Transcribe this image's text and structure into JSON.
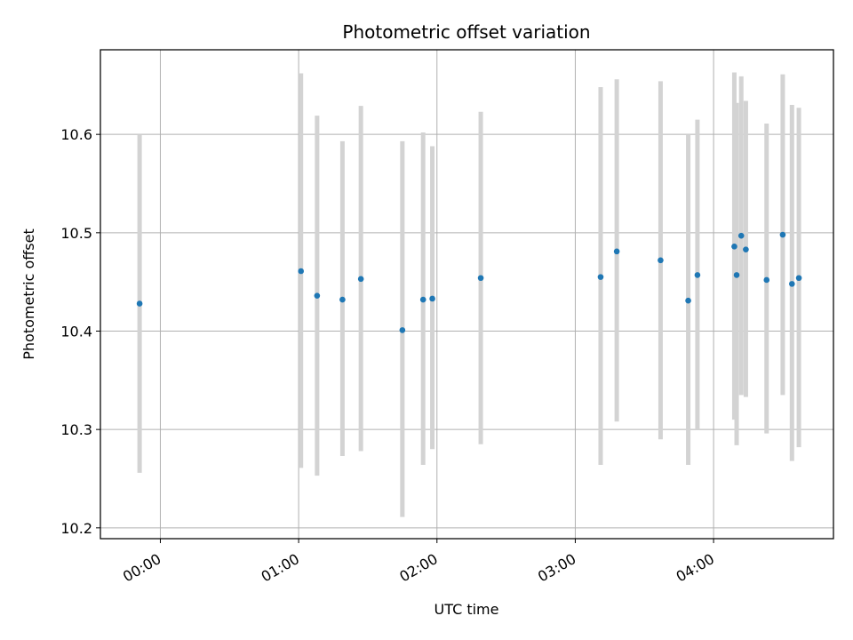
{
  "chart_data": {
    "type": "scatter",
    "title": "Photometric offset variation",
    "xlabel": "UTC time",
    "ylabel": "Photometric offset",
    "xlim": [
      "23:34",
      "04:52"
    ],
    "ylim": [
      10.189,
      10.686
    ],
    "x_ticks": [
      "00:00",
      "01:00",
      "02:00",
      "03:00",
      "04:00"
    ],
    "y_ticks": [
      "10.2",
      "10.3",
      "10.4",
      "10.5",
      "10.6"
    ],
    "grid": true,
    "colors": {
      "points": "#1f77b4",
      "error_bars": "#d3d3d3",
      "grid": "#b0b0b0"
    },
    "series": [
      {
        "x": [
          "23:51",
          "01:01",
          "01:08",
          "01:19",
          "01:27",
          "01:45",
          "01:54",
          "01:58",
          "02:19",
          "03:11",
          "03:18",
          "03:37",
          "03:49",
          "03:53",
          "04:09",
          "04:10",
          "04:12",
          "04:14",
          "04:23",
          "04:30",
          "04:34",
          "04:37"
        ],
        "y": [
          10.428,
          10.461,
          10.436,
          10.432,
          10.453,
          10.401,
          10.432,
          10.433,
          10.454,
          10.455,
          10.481,
          10.472,
          10.431,
          10.457,
          10.486,
          10.457,
          10.497,
          10.483,
          10.452,
          10.498,
          10.448,
          10.454
        ],
        "y_low": [
          10.256,
          10.261,
          10.253,
          10.273,
          10.278,
          10.211,
          10.264,
          10.28,
          10.285,
          10.264,
          10.308,
          10.29,
          10.264,
          10.3,
          10.31,
          10.284,
          10.335,
          10.333,
          10.296,
          10.335,
          10.268,
          10.282
        ],
        "y_high": [
          10.6,
          10.662,
          10.619,
          10.593,
          10.629,
          10.593,
          10.602,
          10.588,
          10.623,
          10.648,
          10.656,
          10.654,
          10.6,
          10.615,
          10.663,
          10.632,
          10.659,
          10.634,
          10.611,
          10.661,
          10.63,
          10.627
        ]
      }
    ]
  }
}
